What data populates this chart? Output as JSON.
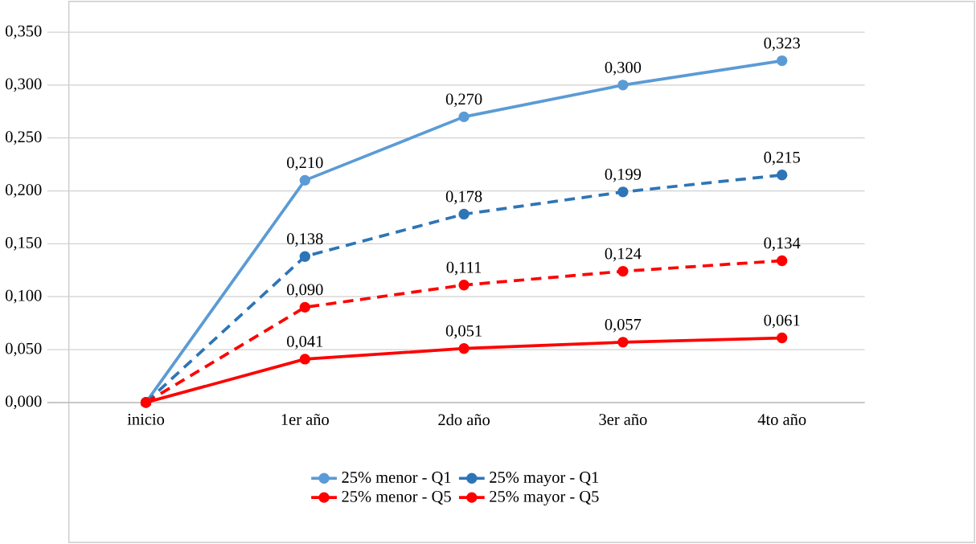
{
  "chart_data": {
    "type": "line",
    "categories": [
      "inicio",
      "1er año",
      "2do año",
      "3er año",
      "4to año"
    ],
    "ylim": [
      0,
      0.35
    ],
    "yticks": [
      {
        "value": 0,
        "label": "0,000"
      },
      {
        "value": 0.05,
        "label": "0,050"
      },
      {
        "value": 0.1,
        "label": "0,100"
      },
      {
        "value": 0.15,
        "label": "0,150"
      },
      {
        "value": 0.2,
        "label": "0,200"
      },
      {
        "value": 0.25,
        "label": "0,250"
      },
      {
        "value": 0.3,
        "label": "0,300"
      },
      {
        "value": 0.35,
        "label": "0,350"
      }
    ],
    "grid": "y",
    "legend": "bottom",
    "marker": "circle",
    "series": [
      {
        "name": "25% menor - Q1",
        "color": "#5b9bd5",
        "line_style": "solid",
        "values": [
          0,
          0.21,
          0.27,
          0.3,
          0.323
        ],
        "value_labels": [
          null,
          "0,210",
          "0,270",
          "0,300",
          "0,323"
        ]
      },
      {
        "name": "25% mayor - Q1",
        "color": "#2e75b6",
        "line_style": "dashed",
        "values": [
          0,
          0.138,
          0.178,
          0.199,
          0.215
        ],
        "value_labels": [
          null,
          "0,138",
          "0,178",
          "0,199",
          "0,215"
        ]
      },
      {
        "name": "25% menor - Q5",
        "color": "#ff0000",
        "line_style": "dashed",
        "values": [
          0,
          0.09,
          0.111,
          0.124,
          0.134
        ],
        "value_labels": [
          null,
          "0,090",
          "0,111",
          "0,124",
          "0,134"
        ]
      },
      {
        "name": "25% mayor - Q5",
        "color": "#ff0000",
        "line_style": "solid",
        "values": [
          0,
          0.041,
          0.051,
          0.057,
          0.061
        ],
        "value_labels": [
          null,
          "0,041",
          "0,051",
          "0,057",
          "0,061"
        ]
      }
    ]
  }
}
